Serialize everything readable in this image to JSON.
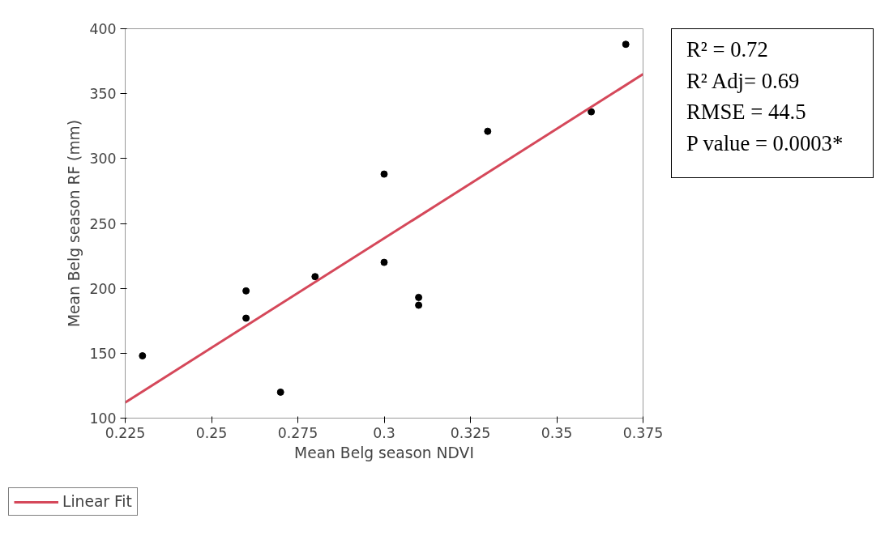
{
  "chart_data": {
    "type": "scatter",
    "xlabel": "Mean Belg season NDVI",
    "ylabel": "Mean Belg season RF (mm)",
    "xlim": [
      0.225,
      0.375
    ],
    "ylim": [
      100,
      400
    ],
    "xticks": [
      0.225,
      0.25,
      0.275,
      0.3,
      0.325,
      0.35,
      0.375
    ],
    "yticks": [
      100,
      150,
      200,
      250,
      300,
      350,
      400
    ],
    "grid": false,
    "legend": "bottom left",
    "series": [
      {
        "type": "scatter",
        "marker": "circle",
        "color": "#000000",
        "x": [
          0.23,
          0.26,
          0.26,
          0.27,
          0.28,
          0.3,
          0.3,
          0.31,
          0.31,
          0.33,
          0.36,
          0.37
        ],
        "values": [
          148,
          198,
          177,
          120,
          209,
          288,
          220,
          193,
          187,
          321,
          336,
          388
        ]
      },
      {
        "type": "line",
        "name": "Linear Fit",
        "color": "#d5485a",
        "line_style": "solid",
        "x": [
          0.225,
          0.375
        ],
        "values": [
          112,
          365
        ]
      }
    ],
    "annotations": [
      "R² = 0.72",
      "R² Adj= 0.69",
      "RMSE = 44.5",
      "P value = 0.0003*"
    ]
  }
}
